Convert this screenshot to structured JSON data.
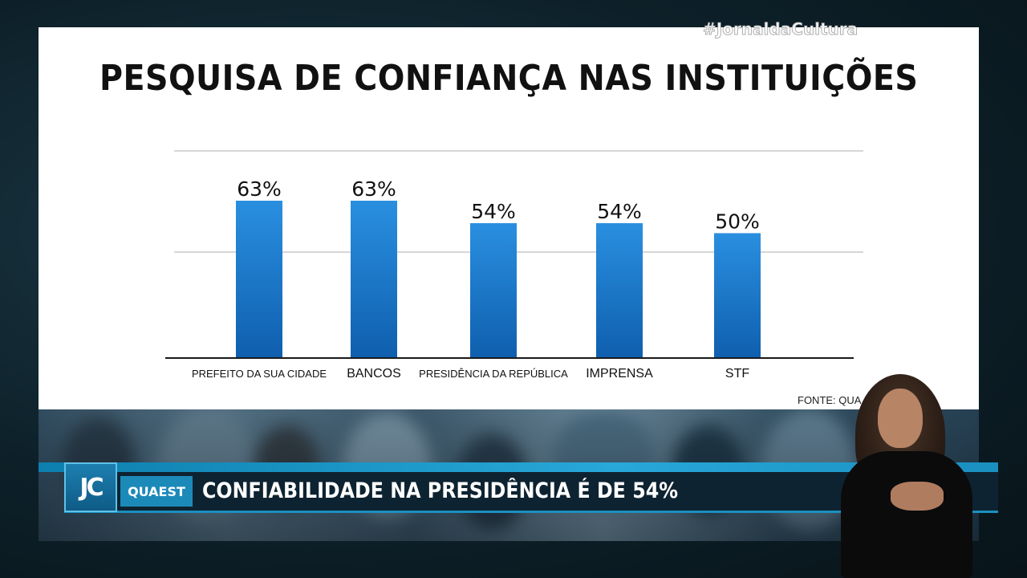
{
  "slide": {
    "title": "PESQUISA DE CONFIANÇA NAS INSTITUIÇÕES",
    "hashtag": "#JornaldaCultura",
    "source": "FONTE: QUA"
  },
  "chart_data": {
    "type": "bar",
    "title": "PESQUISA DE CONFIANÇA NAS INSTITUIÇÕES",
    "categories": [
      "PREFEITO DA SUA CIDADE",
      "BANCOS",
      "PRESIDÊNCIA DA REPÚBLICA",
      "IMPRENSA",
      "STF"
    ],
    "values": [
      63,
      63,
      54,
      54,
      50
    ],
    "value_labels": [
      "63%",
      "63%",
      "54%",
      "54%",
      "50%"
    ],
    "ylim": [
      0,
      100
    ],
    "grid": true,
    "legend": "none",
    "colors": {
      "bar_top": "#2a8fe0",
      "bar_bottom": "#0f5fae"
    }
  },
  "lower_third": {
    "logo": "JC",
    "tag": "QUAEST",
    "headline": "CONFIABILIDADE NA PRESIDÊNCIA É DE 54%",
    "accent": "#1a8fc0"
  }
}
